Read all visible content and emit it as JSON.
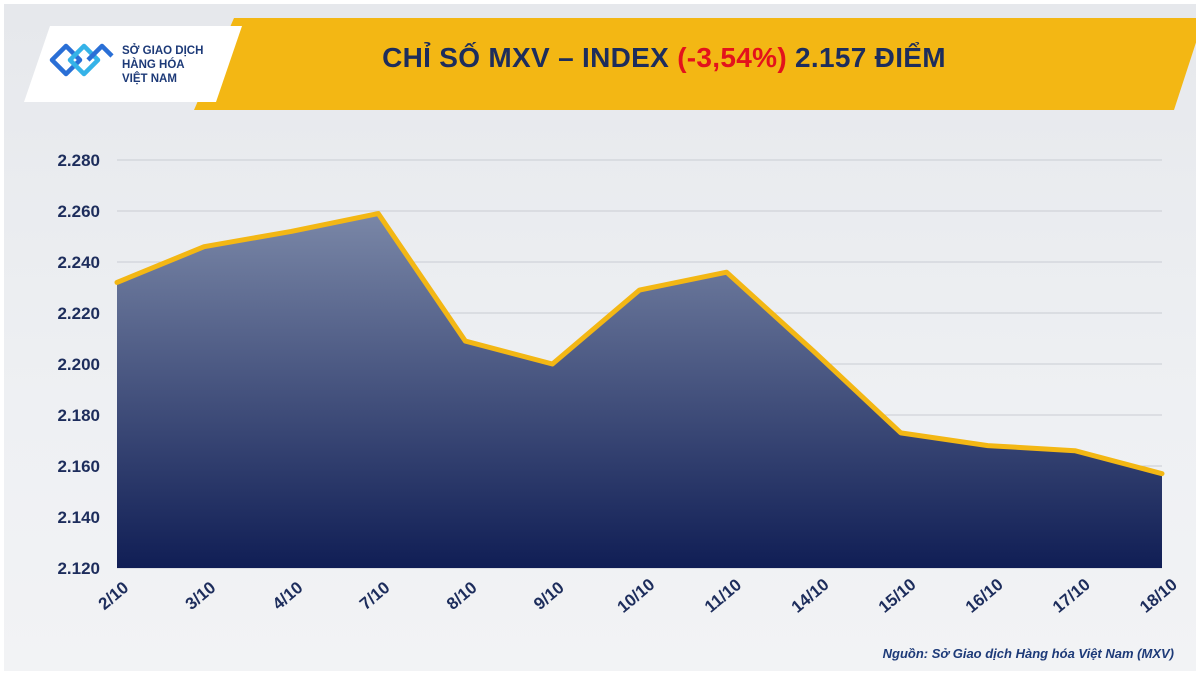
{
  "header": {
    "title_prefix": "CHỈ SỐ MXV – INDEX ",
    "title_change": "(-3,54%)",
    "title_suffix": " 2.157 ĐIỂM"
  },
  "logo": {
    "line1": "SỞ GIAO DỊCH",
    "line2": "HÀNG HÓA",
    "line3": "VIỆT NAM"
  },
  "footer": {
    "source": "Nguồn: Sở Giao dịch Hàng hóa Việt Nam (MXV)"
  },
  "colors": {
    "line": "#f3b714",
    "area_top": "#7a87a7",
    "area_bottom": "#101e55",
    "axis_text": "#1d2d5c",
    "change_red": "#e3121c",
    "banner": "#f3b714"
  },
  "chart_data": {
    "type": "area",
    "title": "CHỈ SỐ MXV – INDEX (-3,54%) 2.157 ĐIỂM",
    "xlabel": "",
    "ylabel": "",
    "categories": [
      "2/10",
      "3/10",
      "4/10",
      "7/10",
      "8/10",
      "9/10",
      "10/10",
      "11/10",
      "14/10",
      "15/10",
      "16/10",
      "17/10",
      "18/10"
    ],
    "series": [
      {
        "values": [
          2232,
          2246,
          2252,
          2259,
          2209,
          2200,
          2229,
          2236,
          2205,
          2173,
          2168,
          2166,
          2157
        ]
      }
    ],
    "ylim": [
      2120,
      2280
    ],
    "yticks": [
      2120,
      2140,
      2160,
      2180,
      2200,
      2220,
      2240,
      2260,
      2280
    ],
    "ytick_labels": [
      "2.120",
      "2.140",
      "2.160",
      "2.180",
      "2.200",
      "2.220",
      "2.240",
      "2.260",
      "2.280"
    ],
    "grid": true,
    "legend": "none"
  }
}
